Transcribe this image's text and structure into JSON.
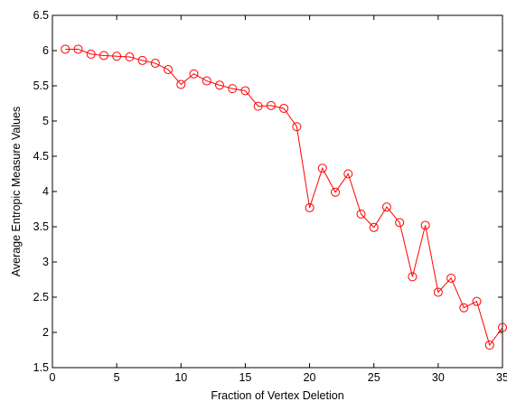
{
  "chart_data": {
    "type": "line",
    "title": "",
    "xlabel": "Fraction of Vertex Deletion",
    "ylabel": "Average Entropic Measure Values",
    "xlim": [
      0,
      35
    ],
    "ylim": [
      1.5,
      6.5
    ],
    "xticks": [
      0,
      5,
      10,
      15,
      20,
      25,
      30,
      35
    ],
    "yticks": [
      1.5,
      2,
      2.5,
      3,
      3.5,
      4,
      4.5,
      5,
      5.5,
      6,
      6.5
    ],
    "xtick_labels": [
      "0",
      "5",
      "10",
      "15",
      "20",
      "25",
      "30",
      "35"
    ],
    "ytick_labels": [
      "1.5",
      "2",
      "2.5",
      "3",
      "3.5",
      "4",
      "4.5",
      "5",
      "5.5",
      "6",
      "6.5"
    ],
    "grid": false,
    "legend": "none",
    "series": [
      {
        "color": "#ff0000",
        "marker": "circle",
        "x": [
          1,
          2,
          3,
          4,
          5,
          6,
          7,
          8,
          9,
          10,
          11,
          12,
          13,
          14,
          15,
          16,
          17,
          18,
          19,
          20,
          21,
          22,
          23,
          24,
          25,
          26,
          27,
          28,
          29,
          30,
          31,
          32,
          33,
          34,
          35
        ],
        "y": [
          6.02,
          6.02,
          5.95,
          5.93,
          5.92,
          5.91,
          5.86,
          5.82,
          5.73,
          5.52,
          5.67,
          5.57,
          5.51,
          5.46,
          5.43,
          5.21,
          5.22,
          5.18,
          4.92,
          3.77,
          4.33,
          3.99,
          4.25,
          3.68,
          3.49,
          3.78,
          3.56,
          2.79,
          3.52,
          2.57,
          2.77,
          2.35,
          2.44,
          1.82,
          2.07
        ]
      }
    ]
  }
}
